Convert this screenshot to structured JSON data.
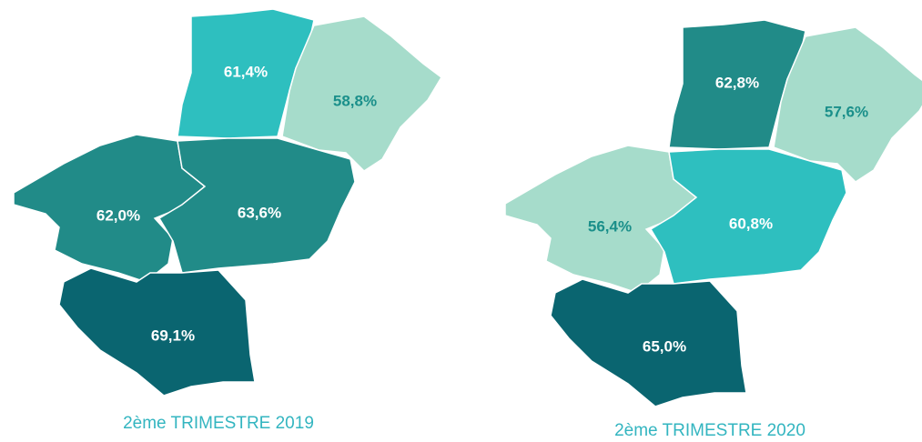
{
  "maps": [
    {
      "caption": "2ème TRIMESTRE 2019",
      "regions": [
        {
          "label": "61,4%",
          "color": "#2ebfbf",
          "label_color": "#ffffff"
        },
        {
          "label": "58,8%",
          "color": "#a6dccb",
          "label_color": "#1a8f8a"
        },
        {
          "label": "62,0%",
          "color": "#218b88",
          "label_color": "#ffffff"
        },
        {
          "label": "63,6%",
          "color": "#218b88",
          "label_color": "#ffffff"
        },
        {
          "label": "69,1%",
          "color": "#0a6570",
          "label_color": "#ffffff"
        }
      ]
    },
    {
      "caption": "2ème TRIMESTRE 2020",
      "regions": [
        {
          "label": "62,8%",
          "color": "#218b88",
          "label_color": "#ffffff"
        },
        {
          "label": "57,6%",
          "color": "#a6dccb",
          "label_color": "#1a8f8a"
        },
        {
          "label": "56,4%",
          "color": "#a6dccb",
          "label_color": "#1a8f8a"
        },
        {
          "label": "60,8%",
          "color": "#2ebfbf",
          "label_color": "#ffffff"
        },
        {
          "label": "65,0%",
          "color": "#0a6570",
          "label_color": "#ffffff"
        }
      ]
    }
  ]
}
